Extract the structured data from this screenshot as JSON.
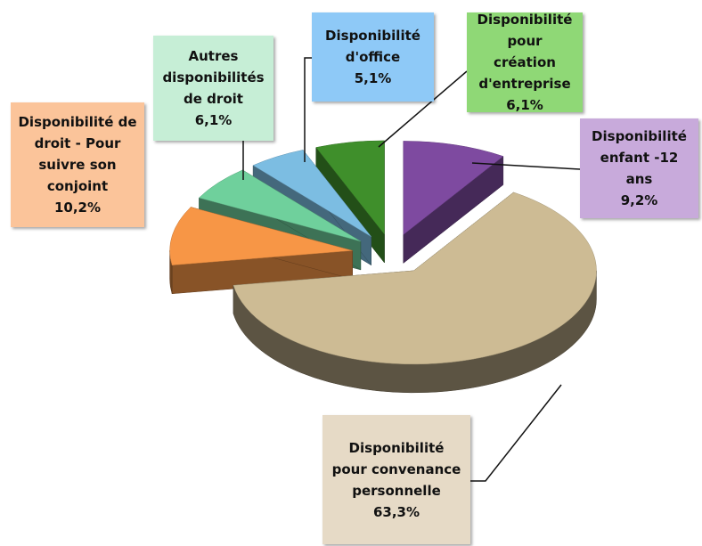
{
  "chart_data": {
    "type": "pie3d",
    "categories": [
      "Disponibilité enfant -12 ans",
      "Disponibilité pour convenance personnelle",
      "Disponibilité de droit - Pour suivre son conjoint",
      "Autres disponibilités de droit",
      "Disponibilité d'office",
      "Disponibilité pour création d'entreprise"
    ],
    "values": [
      9.2,
      63.3,
      10.2,
      6.1,
      5.1,
      6.1
    ],
    "value_labels": [
      "9,2%",
      "63,3%",
      "10,2%",
      "6,1%",
      "5,1%",
      "6,1%"
    ],
    "colors": [
      "#7e4aa0",
      "#cdbb94",
      "#f79646",
      "#6fd09c",
      "#7cbde2",
      "#3f8f2b"
    ]
  }
}
